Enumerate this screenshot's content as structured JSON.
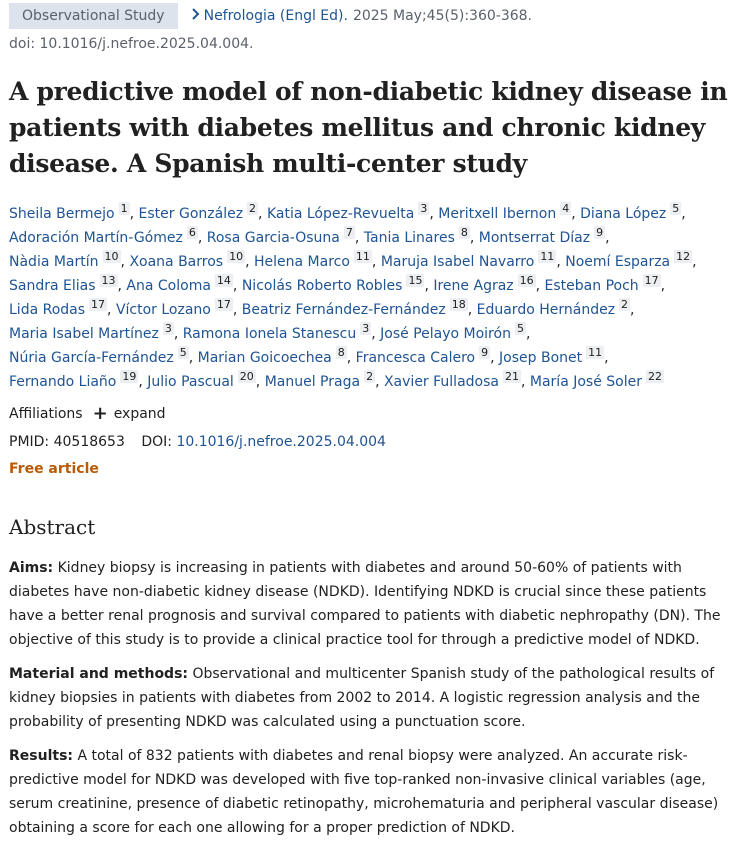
{
  "header": {
    "badge": "Observational Study",
    "chevron_icon": "chevron-right-icon",
    "journal": "Nefrologia (Engl Ed).",
    "citation": "2025 May;45(5):360-368.",
    "doi_line": "doi: 10.1016/j.nefroe.2025.04.004."
  },
  "title": "A predictive model of non-diabetic kidney disease in patients with diabetes mellitus and chronic kidney disease. A Spanish multi-center study",
  "authors": [
    [
      [
        "Sheila Bermejo",
        "1"
      ],
      [
        "Ester González",
        "2"
      ],
      [
        "Katia López-Revuelta",
        "3"
      ],
      [
        "Meritxell Ibernon",
        "4"
      ],
      [
        "Diana López",
        "5"
      ]
    ],
    [
      [
        "Adoración Martín-Gómez",
        "6"
      ],
      [
        "Rosa Garcia-Osuna",
        "7"
      ],
      [
        "Tania Linares",
        "8"
      ],
      [
        "Montserrat Díaz",
        "9"
      ]
    ],
    [
      [
        "Nàdia Martín",
        "10"
      ],
      [
        "Xoana Barros",
        "10"
      ],
      [
        "Helena Marco",
        "11"
      ],
      [
        "Maruja Isabel Navarro",
        "11"
      ],
      [
        "Noemí Esparza",
        "12"
      ]
    ],
    [
      [
        "Sandra Elias",
        "13"
      ],
      [
        "Ana Coloma",
        "14"
      ],
      [
        "Nicolás Roberto Robles",
        "15"
      ],
      [
        "Irene Agraz",
        "16"
      ],
      [
        "Esteban Poch",
        "17"
      ]
    ],
    [
      [
        "Lida Rodas",
        "17"
      ],
      [
        "Víctor Lozano",
        "17"
      ],
      [
        "Beatriz Fernández-Fernández",
        "18"
      ],
      [
        "Eduardo Hernández",
        "2"
      ]
    ],
    [
      [
        "Maria Isabel Martínez",
        "3"
      ],
      [
        "Ramona Ionela Stanescu",
        "3"
      ],
      [
        "José Pelayo Moirón",
        "5"
      ]
    ],
    [
      [
        "Núria García-Fernández",
        "5"
      ],
      [
        "Marian Goicoechea",
        "8"
      ],
      [
        "Francesca Calero",
        "9"
      ],
      [
        "Josep Bonet",
        "11"
      ]
    ],
    [
      [
        "Fernando Liaño",
        "19"
      ],
      [
        "Julio Pascual",
        "20"
      ],
      [
        "Manuel Praga",
        "2"
      ],
      [
        "Xavier Fulladosa",
        "21"
      ],
      [
        "María José Soler",
        "22"
      ]
    ]
  ],
  "affiliations": {
    "label": "Affiliations",
    "expand_icon": "plus-icon",
    "expand_label": "expand"
  },
  "identifiers": {
    "pmid_label": "PMID:",
    "pmid": "40518653",
    "doi_label": "DOI:",
    "doi": "10.1016/j.nefroe.2025.04.004"
  },
  "free_article": "Free article",
  "abstract": {
    "heading": "Abstract",
    "sections": [
      {
        "label": "Aims:",
        "text": " Kidney biopsy is increasing in patients with diabetes and around 50-60% of patients with diabetes have non-diabetic kidney disease (NDKD). Identifying NDKD is crucial since these patients have a better renal prognosis and survival compared to patients with diabetic nephropathy (DN). The objective of this study is to provide a clinical practice tool for through a predictive model of NDKD."
      },
      {
        "label": "Material and methods:",
        "text": " Observational and multicenter Spanish study of the pathological results of kidney biopsies in patients with diabetes from 2002 to 2014. A logistic regression analysis and the probability of presenting NDKD was calculated using a punctuation score."
      },
      {
        "label": "Results:",
        "text": " A total of 832 patients with diabetes and renal biopsy were analyzed. An accurate risk-predictive model for NDKD was developed with five top-ranked non-invasive clinical variables (age, serum creatinine, presence of diabetic retinopathy, microhematuria and peripheral vascular disease) obtaining a score for each one allowing for a proper prediction of NDKD."
      }
    ]
  }
}
